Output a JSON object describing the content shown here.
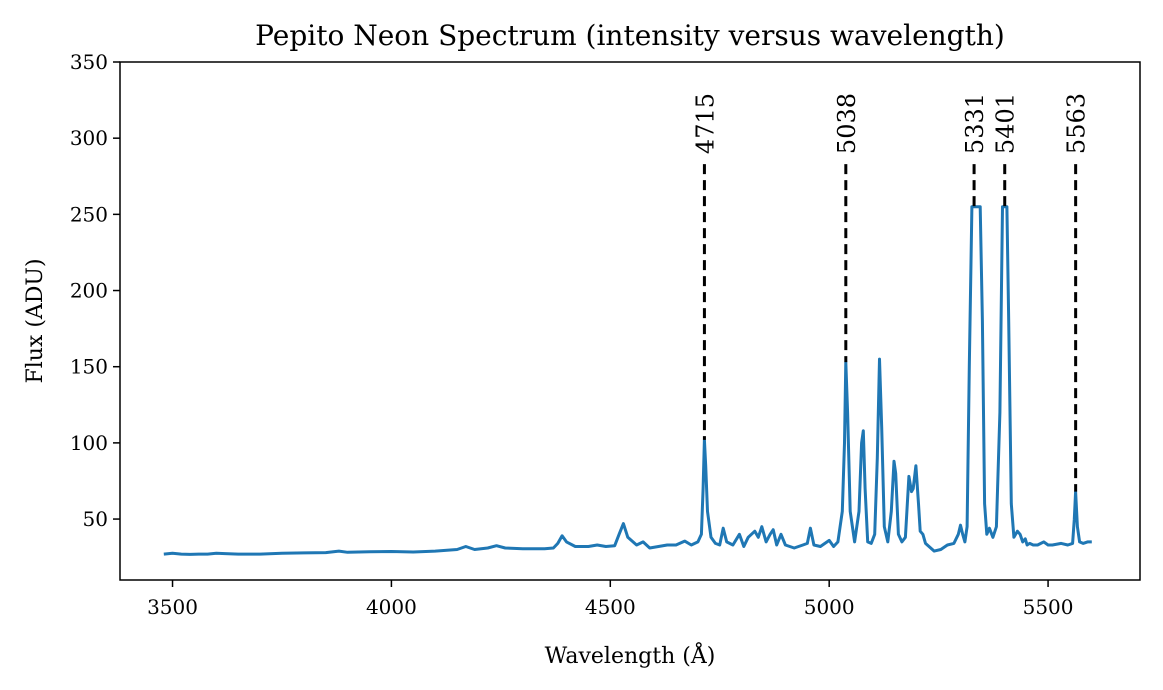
{
  "chart_data": {
    "type": "line",
    "title": "Pepito Neon Spectrum (intensity versus wavelength)",
    "xlabel": "Wavelength (Å)",
    "ylabel": "Flux (ADU)",
    "xlim": [
      3380,
      5710
    ],
    "ylim": [
      10,
      350
    ],
    "xticks": [
      3500,
      4000,
      4500,
      5000,
      5500
    ],
    "yticks": [
      50,
      100,
      150,
      200,
      250,
      300,
      350
    ],
    "grid": false,
    "series": [
      {
        "color": "#1f77b4",
        "x": [
          3480,
          3500,
          3520,
          3540,
          3560,
          3580,
          3600,
          3620,
          3650,
          3700,
          3750,
          3800,
          3850,
          3880,
          3900,
          3950,
          4000,
          4050,
          4100,
          4150,
          4170,
          4190,
          4220,
          4240,
          4260,
          4300,
          4350,
          4370,
          4380,
          4390,
          4400,
          4420,
          4450,
          4470,
          4490,
          4510,
          4520,
          4530,
          4540,
          4560,
          4575,
          4590,
          4610,
          4630,
          4650,
          4670,
          4685,
          4700,
          4708,
          4712,
          4715,
          4718,
          4722,
          4730,
          4740,
          4750,
          4758,
          4766,
          4780,
          4795,
          4805,
          4815,
          4830,
          4838,
          4846,
          4856,
          4865,
          4872,
          4880,
          4890,
          4900,
          4920,
          4940,
          4950,
          4957,
          4965,
          4980,
          5000,
          5010,
          5020,
          5030,
          5035,
          5038,
          5042,
          5048,
          5058,
          5068,
          5074,
          5078,
          5082,
          5088,
          5096,
          5104,
          5110,
          5115,
          5120,
          5126,
          5134,
          5142,
          5148,
          5152,
          5158,
          5166,
          5174,
          5182,
          5188,
          5192,
          5198,
          5204,
          5208,
          5214,
          5220,
          5228,
          5240,
          5255,
          5270,
          5285,
          5295,
          5300,
          5305,
          5310,
          5315,
          5320,
          5326,
          5330,
          5334,
          5345,
          5350,
          5355,
          5360,
          5366,
          5374,
          5382,
          5390,
          5396,
          5400,
          5406,
          5410,
          5416,
          5422,
          5430,
          5436,
          5442,
          5448,
          5452,
          5458,
          5466,
          5476,
          5490,
          5500,
          5510,
          5530,
          5545,
          5556,
          5560,
          5563,
          5567,
          5572,
          5580,
          5590,
          5600
        ],
        "y": [
          27,
          27.5,
          27,
          26.8,
          27,
          27,
          27.5,
          27.3,
          27,
          27,
          27.5,
          27.8,
          28,
          29,
          28.2,
          28.5,
          28.7,
          28.4,
          29,
          30,
          32,
          30,
          31,
          32.5,
          31,
          30.5,
          30.5,
          31,
          34,
          39,
          35,
          32,
          32,
          33,
          32,
          32.5,
          40,
          47,
          38,
          33,
          35,
          31,
          32,
          33,
          33,
          35.5,
          33,
          35,
          40,
          70,
          102,
          85,
          55,
          38,
          34,
          33,
          44,
          35,
          33,
          40,
          32,
          38,
          42,
          38,
          45,
          35,
          40,
          43,
          33,
          40,
          33,
          31,
          33,
          34,
          44,
          33,
          32,
          36,
          32,
          35,
          55,
          100,
          153,
          120,
          55,
          35,
          55,
          100,
          108,
          70,
          35,
          34,
          40,
          90,
          155,
          110,
          45,
          35,
          55,
          88,
          80,
          40,
          35,
          38,
          78,
          68,
          70,
          85,
          60,
          42,
          40,
          34,
          32,
          29,
          30,
          33,
          34,
          40,
          46,
          40,
          35,
          45,
          150,
          255,
          255,
          255,
          255,
          180,
          60,
          40,
          44,
          38,
          45,
          120,
          255,
          255,
          255,
          180,
          60,
          38,
          42,
          40,
          35,
          37,
          33,
          34,
          33,
          33,
          35,
          33,
          33,
          34,
          33,
          34,
          50,
          68,
          45,
          35,
          34,
          35,
          35
        ]
      }
    ],
    "annotations": [
      {
        "label": "4715",
        "x": 4715,
        "y_top": 283,
        "y_bottom": 102
      },
      {
        "label": "5038",
        "x": 5038,
        "y_top": 283,
        "y_bottom": 153
      },
      {
        "label": "5331",
        "x": 5331,
        "y_top": 283,
        "y_bottom": 255
      },
      {
        "label": "5401",
        "x": 5401,
        "y_top": 283,
        "y_bottom": 255
      },
      {
        "label": "5563",
        "x": 5563,
        "y_top": 283,
        "y_bottom": 68
      }
    ]
  }
}
